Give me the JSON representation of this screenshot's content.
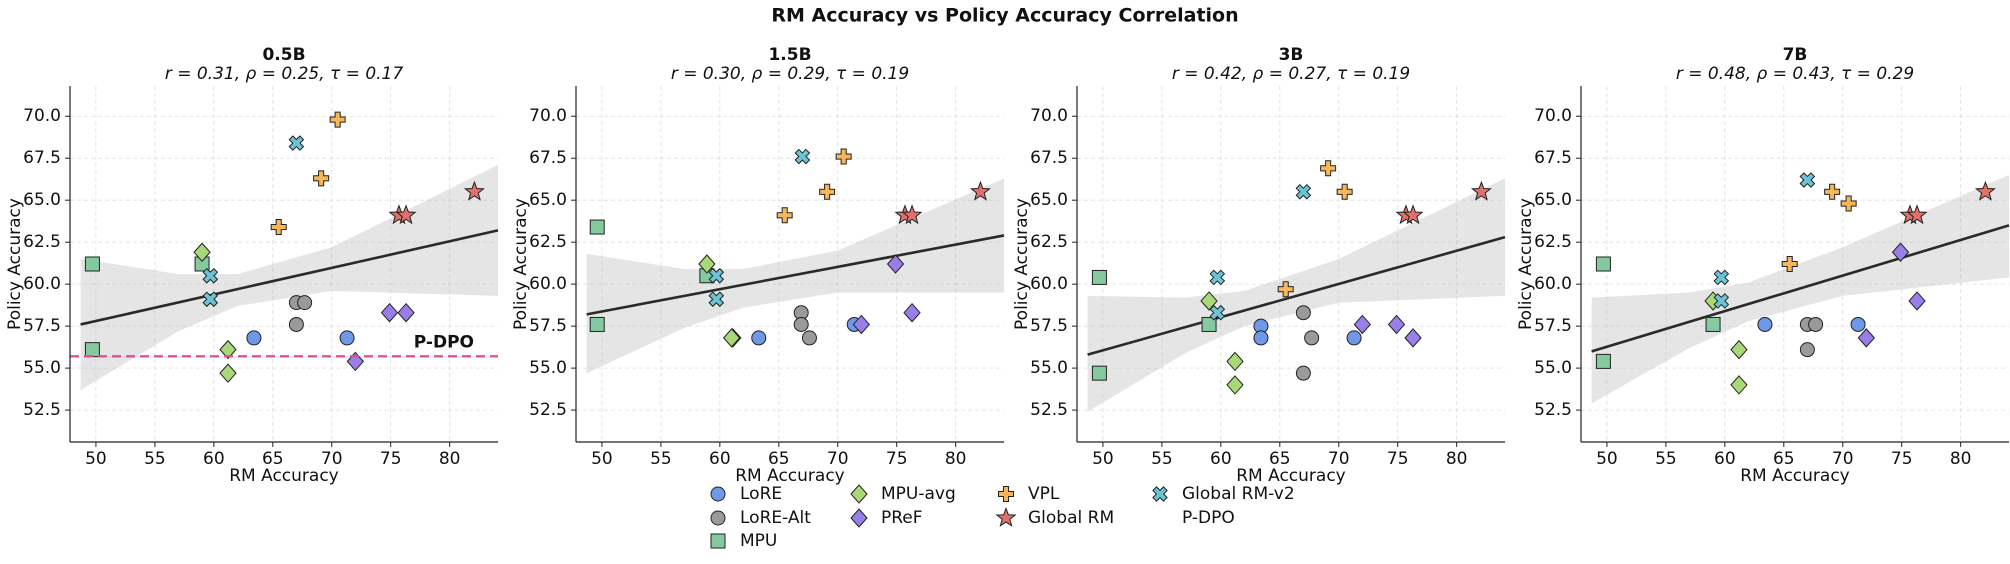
{
  "title": "RM Accuracy vs Policy Accuracy Correlation",
  "chart_data": [
    {
      "type": "scatter",
      "title": "0.5B",
      "subtitle": "r = 0.31, ρ = 0.25, τ = 0.17",
      "x_label": "RM Accuracy",
      "y_label": "Policy Accuracy",
      "xlim": [
        47.8,
        84.1
      ],
      "ylim": [
        50.6,
        71.8
      ],
      "xticks": [
        50,
        55,
        60,
        65,
        70,
        75,
        80
      ],
      "yticks": [
        52.5,
        {
          "value": 55,
          "label": "55.0"
        },
        57.5,
        {
          "value": 60,
          "label": "60.0"
        },
        62.5,
        {
          "value": 65,
          "label": "65.0"
        },
        67.5,
        {
          "value": 70,
          "label": "70.0"
        }
      ],
      "grid": true,
      "series": [
        {
          "name": "LoRE",
          "color": "#6f98e8",
          "marker": "circle",
          "x": [
            63.4,
            71.3
          ],
          "values": [
            56.8,
            56.8
          ]
        },
        {
          "name": "LoRE-Alt",
          "color": "#9a9a9a",
          "marker": "circle",
          "x": [
            67.0,
            67.7,
            67.0
          ],
          "values": [
            58.9,
            58.9,
            57.6
          ]
        },
        {
          "name": "MPU",
          "color": "#84c9a0",
          "marker": "square",
          "x": [
            49.7,
            59.0,
            49.7
          ],
          "values": [
            61.2,
            61.2,
            56.1
          ]
        },
        {
          "name": "MPU-avg",
          "color": "#a8d878",
          "marker": "diamond",
          "x": [
            59.0,
            61.2,
            61.2
          ],
          "values": [
            61.9,
            56.1,
            54.7
          ]
        },
        {
          "name": "PReF",
          "color": "#9a7ee8",
          "marker": "diamond",
          "x": [
            74.9,
            76.3,
            72.0
          ],
          "values": [
            58.3,
            58.3,
            55.4
          ]
        },
        {
          "name": "VPL",
          "color": "#f5b75a",
          "marker": "plus",
          "x": [
            70.5,
            69.1,
            65.5
          ],
          "values": [
            69.8,
            66.3,
            63.4
          ]
        },
        {
          "name": "Global RM",
          "color": "#e0706a",
          "marker": "star",
          "x": [
            75.7,
            76.3,
            82.1
          ],
          "values": [
            64.1,
            64.1,
            65.5
          ]
        },
        {
          "name": "Global RM-v2",
          "color": "#6cc3d4",
          "marker": "x",
          "x": [
            67.0,
            59.7,
            59.7
          ],
          "values": [
            68.4,
            60.5,
            59.1
          ]
        },
        {
          "name": "P-DPO",
          "color": "#e0509a",
          "marker": "hline",
          "values": [
            55.7
          ]
        }
      ],
      "regression": {
        "x": [
          48.7,
          84.1
        ],
        "values": [
          57.6,
          63.2
        ]
      },
      "band": {
        "x": [
          48.7,
          57,
          62,
          70,
          84.1
        ],
        "upper": [
          61.5,
          60.6,
          60.6,
          62.2,
          67.1
        ],
        "lower": [
          53.7,
          57.2,
          58.7,
          59.6,
          59.3
        ]
      }
    },
    {
      "type": "scatter",
      "title": "1.5B",
      "subtitle": "r = 0.30, ρ = 0.29, τ = 0.19",
      "x_label": "RM Accuracy",
      "y_label": "Policy Accuracy",
      "xlim": [
        47.8,
        84.1
      ],
      "ylim": [
        50.6,
        71.8
      ],
      "xticks": [
        50,
        55,
        60,
        65,
        70,
        75,
        80
      ],
      "yticks": [
        52.5,
        {
          "value": 55,
          "label": "55.0"
        },
        57.5,
        {
          "value": 60,
          "label": "60.0"
        },
        62.5,
        {
          "value": 65,
          "label": "65.0"
        },
        67.5,
        {
          "value": 70,
          "label": "70.0"
        }
      ],
      "grid": true,
      "series": [
        {
          "name": "LoRE",
          "color": "#6f98e8",
          "marker": "circle",
          "x": [
            63.3,
            71.4
          ],
          "values": [
            56.8,
            57.6
          ]
        },
        {
          "name": "LoRE-Alt",
          "color": "#9a9a9a",
          "marker": "circle",
          "x": [
            66.9,
            66.9,
            67.6
          ],
          "values": [
            58.3,
            57.6,
            56.8
          ]
        },
        {
          "name": "MPU",
          "color": "#84c9a0",
          "marker": "square",
          "x": [
            49.6,
            58.9,
            49.6
          ],
          "values": [
            63.4,
            60.5,
            57.6
          ]
        },
        {
          "name": "MPU-avg",
          "color": "#a8d878",
          "marker": "diamond",
          "x": [
            58.9,
            61.1,
            61.0
          ],
          "values": [
            61.2,
            56.8,
            56.8
          ]
        },
        {
          "name": "PReF",
          "color": "#9a7ee8",
          "marker": "diamond",
          "x": [
            74.9,
            76.3,
            72.0
          ],
          "values": [
            61.2,
            58.3,
            57.6
          ]
        },
        {
          "name": "VPL",
          "color": "#f5b75a",
          "marker": "plus",
          "x": [
            70.5,
            69.1,
            65.5
          ],
          "values": [
            67.6,
            65.5,
            64.1
          ]
        },
        {
          "name": "Global RM",
          "color": "#e0706a",
          "marker": "star",
          "x": [
            75.7,
            76.3,
            82.1
          ],
          "values": [
            64.1,
            64.1,
            65.5
          ]
        },
        {
          "name": "Global RM-v2",
          "color": "#6cc3d4",
          "marker": "x",
          "x": [
            67.0,
            59.7,
            59.7
          ],
          "values": [
            67.6,
            60.5,
            59.1
          ]
        }
      ],
      "regression": {
        "x": [
          48.7,
          84.1
        ],
        "values": [
          58.2,
          62.9
        ]
      },
      "band": {
        "x": [
          48.7,
          57,
          62,
          70,
          84.1
        ],
        "upper": [
          61.8,
          60.9,
          60.9,
          62.0,
          66.3
        ],
        "lower": [
          54.7,
          57.4,
          58.6,
          59.5,
          59.5
        ]
      }
    },
    {
      "type": "scatter",
      "title": "3B",
      "subtitle": "r = 0.42, ρ = 0.27, τ = 0.19",
      "x_label": "RM Accuracy",
      "y_label": "Policy Accuracy",
      "xlim": [
        47.8,
        84.1
      ],
      "ylim": [
        50.6,
        71.8
      ],
      "xticks": [
        50,
        55,
        60,
        65,
        70,
        75,
        80
      ],
      "yticks": [
        52.5,
        {
          "value": 55,
          "label": "55.0"
        },
        57.5,
        {
          "value": 60,
          "label": "60.0"
        },
        62.5,
        {
          "value": 65,
          "label": "65.0"
        },
        67.5,
        {
          "value": 70,
          "label": "70.0"
        }
      ],
      "grid": true,
      "series": [
        {
          "name": "LoRE",
          "color": "#6f98e8",
          "marker": "circle",
          "x": [
            63.4,
            63.4,
            71.3
          ],
          "values": [
            57.5,
            56.8,
            56.8
          ]
        },
        {
          "name": "LoRE-Alt",
          "color": "#9a9a9a",
          "marker": "circle",
          "x": [
            67.0,
            67.7,
            67.0
          ],
          "values": [
            58.3,
            56.8,
            54.7
          ]
        },
        {
          "name": "MPU",
          "color": "#84c9a0",
          "marker": "square",
          "x": [
            49.7,
            59.0,
            49.7
          ],
          "values": [
            60.4,
            57.6,
            54.7
          ]
        },
        {
          "name": "MPU-avg",
          "color": "#a8d878",
          "marker": "diamond",
          "x": [
            59.0,
            61.2,
            61.2
          ],
          "values": [
            59.0,
            55.4,
            54.0
          ]
        },
        {
          "name": "PReF",
          "color": "#9a7ee8",
          "marker": "diamond",
          "x": [
            72.0,
            74.9,
            76.3
          ],
          "values": [
            57.6,
            57.6,
            56.8
          ]
        },
        {
          "name": "VPL",
          "color": "#f5b75a",
          "marker": "plus",
          "x": [
            69.1,
            70.5,
            65.5
          ],
          "values": [
            66.9,
            65.5,
            59.7
          ]
        },
        {
          "name": "Global RM",
          "color": "#e0706a",
          "marker": "star",
          "x": [
            75.7,
            76.3,
            82.1
          ],
          "values": [
            64.1,
            64.1,
            65.5
          ]
        },
        {
          "name": "Global RM-v2",
          "color": "#6cc3d4",
          "marker": "x",
          "x": [
            67.0,
            59.7,
            59.7
          ],
          "values": [
            65.5,
            60.4,
            58.3
          ]
        }
      ],
      "regression": {
        "x": [
          48.7,
          84.1
        ],
        "values": [
          55.8,
          62.8
        ]
      },
      "band": {
        "x": [
          48.7,
          57,
          62,
          70,
          84.1
        ],
        "upper": [
          59.3,
          59.2,
          59.6,
          61.5,
          66.3
        ],
        "lower": [
          52.4,
          55.9,
          57.5,
          58.9,
          59.3
        ]
      }
    },
    {
      "type": "scatter",
      "title": "7B",
      "subtitle": "r = 0.48, ρ = 0.43, τ = 0.29",
      "x_label": "RM Accuracy",
      "y_label": "Policy Accuracy",
      "xlim": [
        47.8,
        84.1
      ],
      "ylim": [
        50.6,
        71.8
      ],
      "xticks": [
        50,
        55,
        60,
        65,
        70,
        75,
        80
      ],
      "yticks": [
        52.5,
        {
          "value": 55,
          "label": "55.0"
        },
        57.5,
        {
          "value": 60,
          "label": "60.0"
        },
        62.5,
        {
          "value": 65,
          "label": "65.0"
        },
        67.5,
        {
          "value": 70,
          "label": "70.0"
        }
      ],
      "grid": true,
      "series": [
        {
          "name": "LoRE",
          "color": "#6f98e8",
          "marker": "circle",
          "x": [
            63.4,
            71.3
          ],
          "values": [
            57.6,
            57.6
          ]
        },
        {
          "name": "LoRE-Alt",
          "color": "#9a9a9a",
          "marker": "circle",
          "x": [
            67.0,
            67.7,
            67.0
          ],
          "values": [
            57.6,
            57.6,
            56.1
          ]
        },
        {
          "name": "MPU",
          "color": "#84c9a0",
          "marker": "square",
          "x": [
            49.7,
            59.0,
            49.7
          ],
          "values": [
            61.2,
            57.6,
            55.4
          ]
        },
        {
          "name": "MPU-avg",
          "color": "#a8d878",
          "marker": "diamond",
          "x": [
            59.0,
            61.2,
            61.2
          ],
          "values": [
            59.0,
            56.1,
            54.0
          ]
        },
        {
          "name": "PReF",
          "color": "#9a7ee8",
          "marker": "diamond",
          "x": [
            74.9,
            76.3,
            72.0
          ],
          "values": [
            61.9,
            59.0,
            56.8
          ]
        },
        {
          "name": "VPL",
          "color": "#f5b75a",
          "marker": "plus",
          "x": [
            69.1,
            70.5,
            65.5
          ],
          "values": [
            65.5,
            64.8,
            61.2
          ]
        },
        {
          "name": "Global RM",
          "color": "#e0706a",
          "marker": "star",
          "x": [
            75.7,
            76.3,
            82.1
          ],
          "values": [
            64.1,
            64.1,
            65.5
          ]
        },
        {
          "name": "Global RM-v2",
          "color": "#6cc3d4",
          "marker": "x",
          "x": [
            67.0,
            59.7,
            59.7
          ],
          "values": [
            66.2,
            60.4,
            59.0
          ]
        }
      ],
      "regression": {
        "x": [
          48.7,
          84.1
        ],
        "values": [
          56.0,
          63.5
        ]
      },
      "band": {
        "x": [
          48.7,
          57,
          62,
          70,
          84.1
        ],
        "upper": [
          59.2,
          59.5,
          60.1,
          62.2,
          66.5
        ],
        "lower": [
          52.9,
          56.2,
          57.8,
          59.3,
          60.4
        ]
      }
    }
  ]
}
